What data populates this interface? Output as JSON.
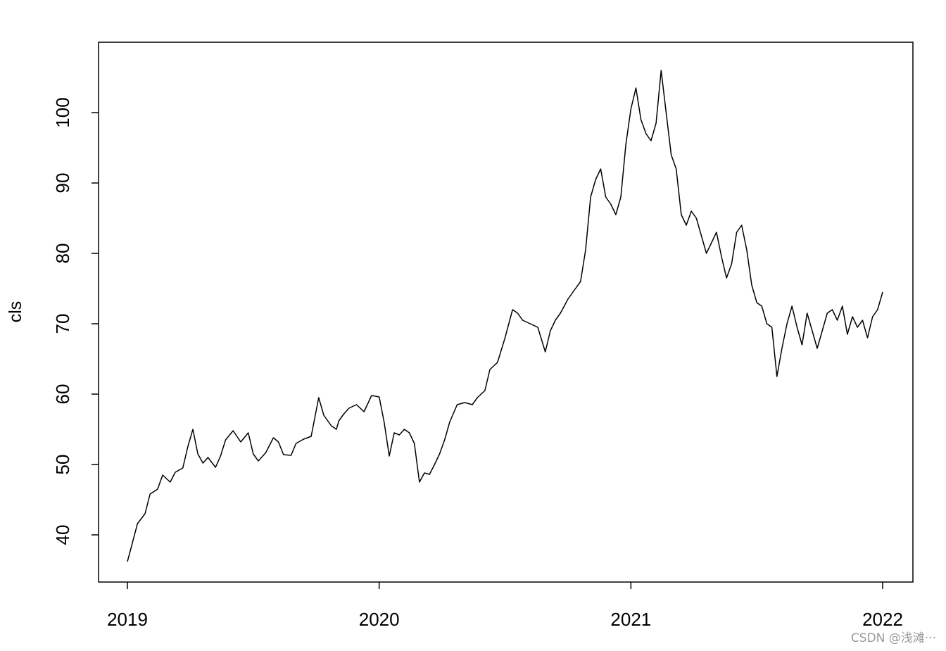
{
  "chart_data": {
    "type": "line",
    "title": "",
    "xlabel": "",
    "ylabel": "cls",
    "xlim": [
      2019.0,
      2022.0
    ],
    "ylim": [
      34,
      108
    ],
    "x_ticks": [
      2019,
      2020,
      2021,
      2022
    ],
    "x_tick_labels": [
      "2019",
      "2020",
      "2021",
      "2022"
    ],
    "y_ticks": [
      40,
      50,
      60,
      70,
      80,
      90,
      100
    ],
    "y_tick_labels": [
      "40",
      "50",
      "60",
      "70",
      "80",
      "90",
      "100"
    ],
    "grid": false,
    "series": [
      {
        "color": "#000000",
        "x": [
          2019.0,
          2019.02,
          2019.04,
          2019.07,
          2019.09,
          2019.12,
          2019.14,
          2019.17,
          2019.19,
          2019.22,
          2019.24,
          2019.26,
          2019.28,
          2019.3,
          2019.32,
          2019.35,
          2019.37,
          2019.39,
          2019.42,
          2019.45,
          2019.48,
          2019.5,
          2019.52,
          2019.55,
          2019.58,
          2019.6,
          2019.62,
          2019.65,
          2019.67,
          2019.7,
          2019.73,
          2019.76,
          2019.78,
          2019.81,
          2019.83,
          2019.84,
          2019.86,
          2019.88,
          2019.91,
          2019.94,
          2019.97,
          2020.0,
          2020.02,
          2020.04,
          2020.06,
          2020.08,
          2020.1,
          2020.12,
          2020.14,
          2020.16,
          2020.18,
          2020.2,
          2020.22,
          2020.24,
          2020.26,
          2020.28,
          2020.31,
          2020.34,
          2020.37,
          2020.39,
          2020.42,
          2020.44,
          2020.47,
          2020.5,
          2020.53,
          2020.55,
          2020.57,
          2020.6,
          2020.63,
          2020.66,
          2020.68,
          2020.7,
          2020.72,
          2020.75,
          2020.78,
          2020.8,
          2020.82,
          2020.84,
          2020.86,
          2020.88,
          2020.9,
          2020.92,
          2020.94,
          2020.96,
          2020.98,
          2021.0,
          2021.02,
          2021.04,
          2021.06,
          2021.08,
          2021.1,
          2021.12,
          2021.14,
          2021.16,
          2021.18,
          2021.2,
          2021.22,
          2021.24,
          2021.26,
          2021.28,
          2021.3,
          2021.32,
          2021.34,
          2021.36,
          2021.38,
          2021.4,
          2021.42,
          2021.44,
          2021.46,
          2021.48,
          2021.5,
          2021.52,
          2021.54,
          2021.56,
          2021.58,
          2021.6,
          2021.62,
          2021.64,
          2021.66,
          2021.68,
          2021.7,
          2021.72,
          2021.74,
          2021.76,
          2021.78,
          2021.8,
          2021.82,
          2021.84,
          2021.86,
          2021.88,
          2021.9,
          2021.92,
          2021.94,
          2021.96,
          2021.98,
          2022.0
        ],
        "y": [
          36.2,
          38.9,
          41.6,
          43.0,
          45.8,
          46.5,
          48.5,
          47.5,
          48.9,
          49.5,
          52.5,
          55.0,
          51.5,
          50.2,
          51.0,
          49.6,
          51.2,
          53.5,
          54.8,
          53.2,
          54.5,
          51.5,
          50.5,
          51.7,
          53.8,
          53.2,
          51.4,
          51.3,
          53.0,
          53.6,
          54.0,
          59.5,
          57.0,
          55.5,
          55.0,
          56.2,
          57.2,
          58.0,
          58.5,
          57.5,
          59.8,
          59.6,
          56.0,
          51.2,
          54.5,
          54.2,
          55.0,
          54.5,
          53.0,
          47.5,
          48.8,
          48.6,
          50.0,
          51.5,
          53.5,
          56.0,
          58.5,
          58.8,
          58.5,
          59.5,
          60.5,
          63.5,
          64.5,
          68.0,
          72.0,
          71.5,
          70.5,
          70.0,
          69.5,
          66.0,
          69.0,
          70.5,
          71.5,
          73.5,
          75.0,
          76.0,
          80.5,
          88.0,
          90.5,
          92.0,
          88.0,
          87.0,
          85.5,
          88.0,
          95.5,
          100.5,
          103.5,
          99.0,
          97.0,
          96.0,
          98.5,
          106.0,
          100.0,
          94.0,
          92.0,
          85.5,
          84.0,
          86.0,
          85.0,
          82.5,
          80.0,
          81.5,
          83.0,
          79.5,
          76.5,
          78.5,
          83.0,
          84.0,
          80.5,
          75.5,
          73.0,
          72.5,
          70.0,
          69.5,
          62.5,
          66.5,
          70.0,
          72.5,
          69.5,
          67.0,
          71.5,
          69.0,
          66.5,
          69.0,
          71.5,
          72.0,
          70.5,
          72.5,
          68.5,
          71.0,
          69.5,
          70.5,
          68.0,
          71.0,
          72.0,
          74.5
        ]
      }
    ]
  },
  "watermark": "CSDN @浅滩···"
}
